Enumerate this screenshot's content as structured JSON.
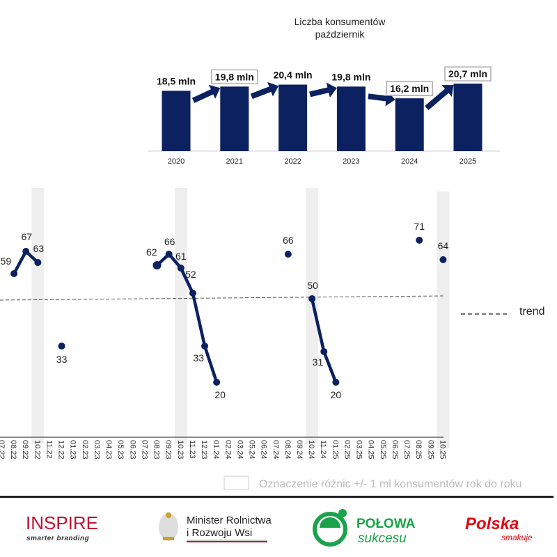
{
  "chart_data": [
    {
      "type": "bar",
      "title": "Liczba konsumentów",
      "subtitle": "październik",
      "categories": [
        "2020",
        "2021",
        "2022",
        "2023",
        "2024",
        "2025"
      ],
      "values": [
        18.5,
        19.8,
        20.4,
        19.8,
        16.2,
        20.7
      ],
      "data_labels": [
        "18,5 mln",
        "19,8 mln",
        "20,4 mln",
        "19,8 mln",
        "16,2 mln",
        "20,7 mln"
      ],
      "boxed_labels": [
        false,
        true,
        false,
        false,
        true,
        true
      ],
      "arrows_between_bars": true,
      "bar_color": "#0b2160",
      "ylim": [
        0,
        21
      ]
    },
    {
      "type": "line",
      "x": [
        "07.22",
        "08.22",
        "09.22",
        "10.22",
        "11.22",
        "12.22",
        "01.23",
        "02.23",
        "03.23",
        "04.23",
        "05.23",
        "06.23",
        "07.23",
        "08.23",
        "09.23",
        "10.23",
        "11.23",
        "12.23",
        "01.24",
        "02.24",
        "03.24",
        "05.24",
        "06.24",
        "07.24",
        "08.24",
        "09.24",
        "10.24",
        "11.24",
        "01.25",
        "02.25",
        "03.25",
        "04.25",
        "05.25",
        "06.25",
        "07.25",
        "08.25",
        "09.25",
        "10.25"
      ],
      "highlighted_x": [
        "10.22",
        "10.23",
        "10.24",
        "10.25"
      ],
      "series": [
        {
          "segments": [
            [
              {
                "x": "08.22",
                "y": 59
              },
              {
                "x": "09.22",
                "y": 67
              },
              {
                "x": "10.22",
                "y": 63
              }
            ],
            [
              {
                "x": "12.22",
                "y": 33
              }
            ],
            [
              {
                "x": "08.23",
                "y": 62
              },
              {
                "x": "09.23",
                "y": 66
              },
              {
                "x": "10.23",
                "y": 61
              },
              {
                "x": "11.23",
                "y": 52
              },
              {
                "x": "12.23",
                "y": 33
              },
              {
                "x": "01.24",
                "y": 20
              }
            ],
            [
              {
                "x": "08.24",
                "y": 66
              }
            ],
            [
              {
                "x": "10.24",
                "y": 50
              },
              {
                "x": "11.24",
                "y": 31
              },
              {
                "x": "01.25",
                "y": 20
              }
            ],
            [
              {
                "x": "08.25",
                "y": 71
              }
            ],
            [
              {
                "x": "10.25",
                "y": 64
              }
            ]
          ]
        }
      ],
      "trend": {
        "label": "trend",
        "start": 49.5,
        "end": 51
      },
      "ylim": [
        0,
        80
      ],
      "grid": false,
      "line_color": "#0b2160",
      "highlight_color": "#efefef"
    }
  ],
  "legend_note": "Oznaczenie różnic +/- 1 ml konsumentów rok do roku",
  "logos": {
    "inspire": {
      "name": "INSPIRE",
      "tagline": "smarter branding"
    },
    "ministry": {
      "line1": "Minister Rolnictwa",
      "line2": "i Rozwoju Wsi"
    },
    "polowa": {
      "line1": "POŁOWA",
      "line2": "sukcesu"
    },
    "polska": {
      "line1": "Polska",
      "line2": "smakuje"
    }
  }
}
